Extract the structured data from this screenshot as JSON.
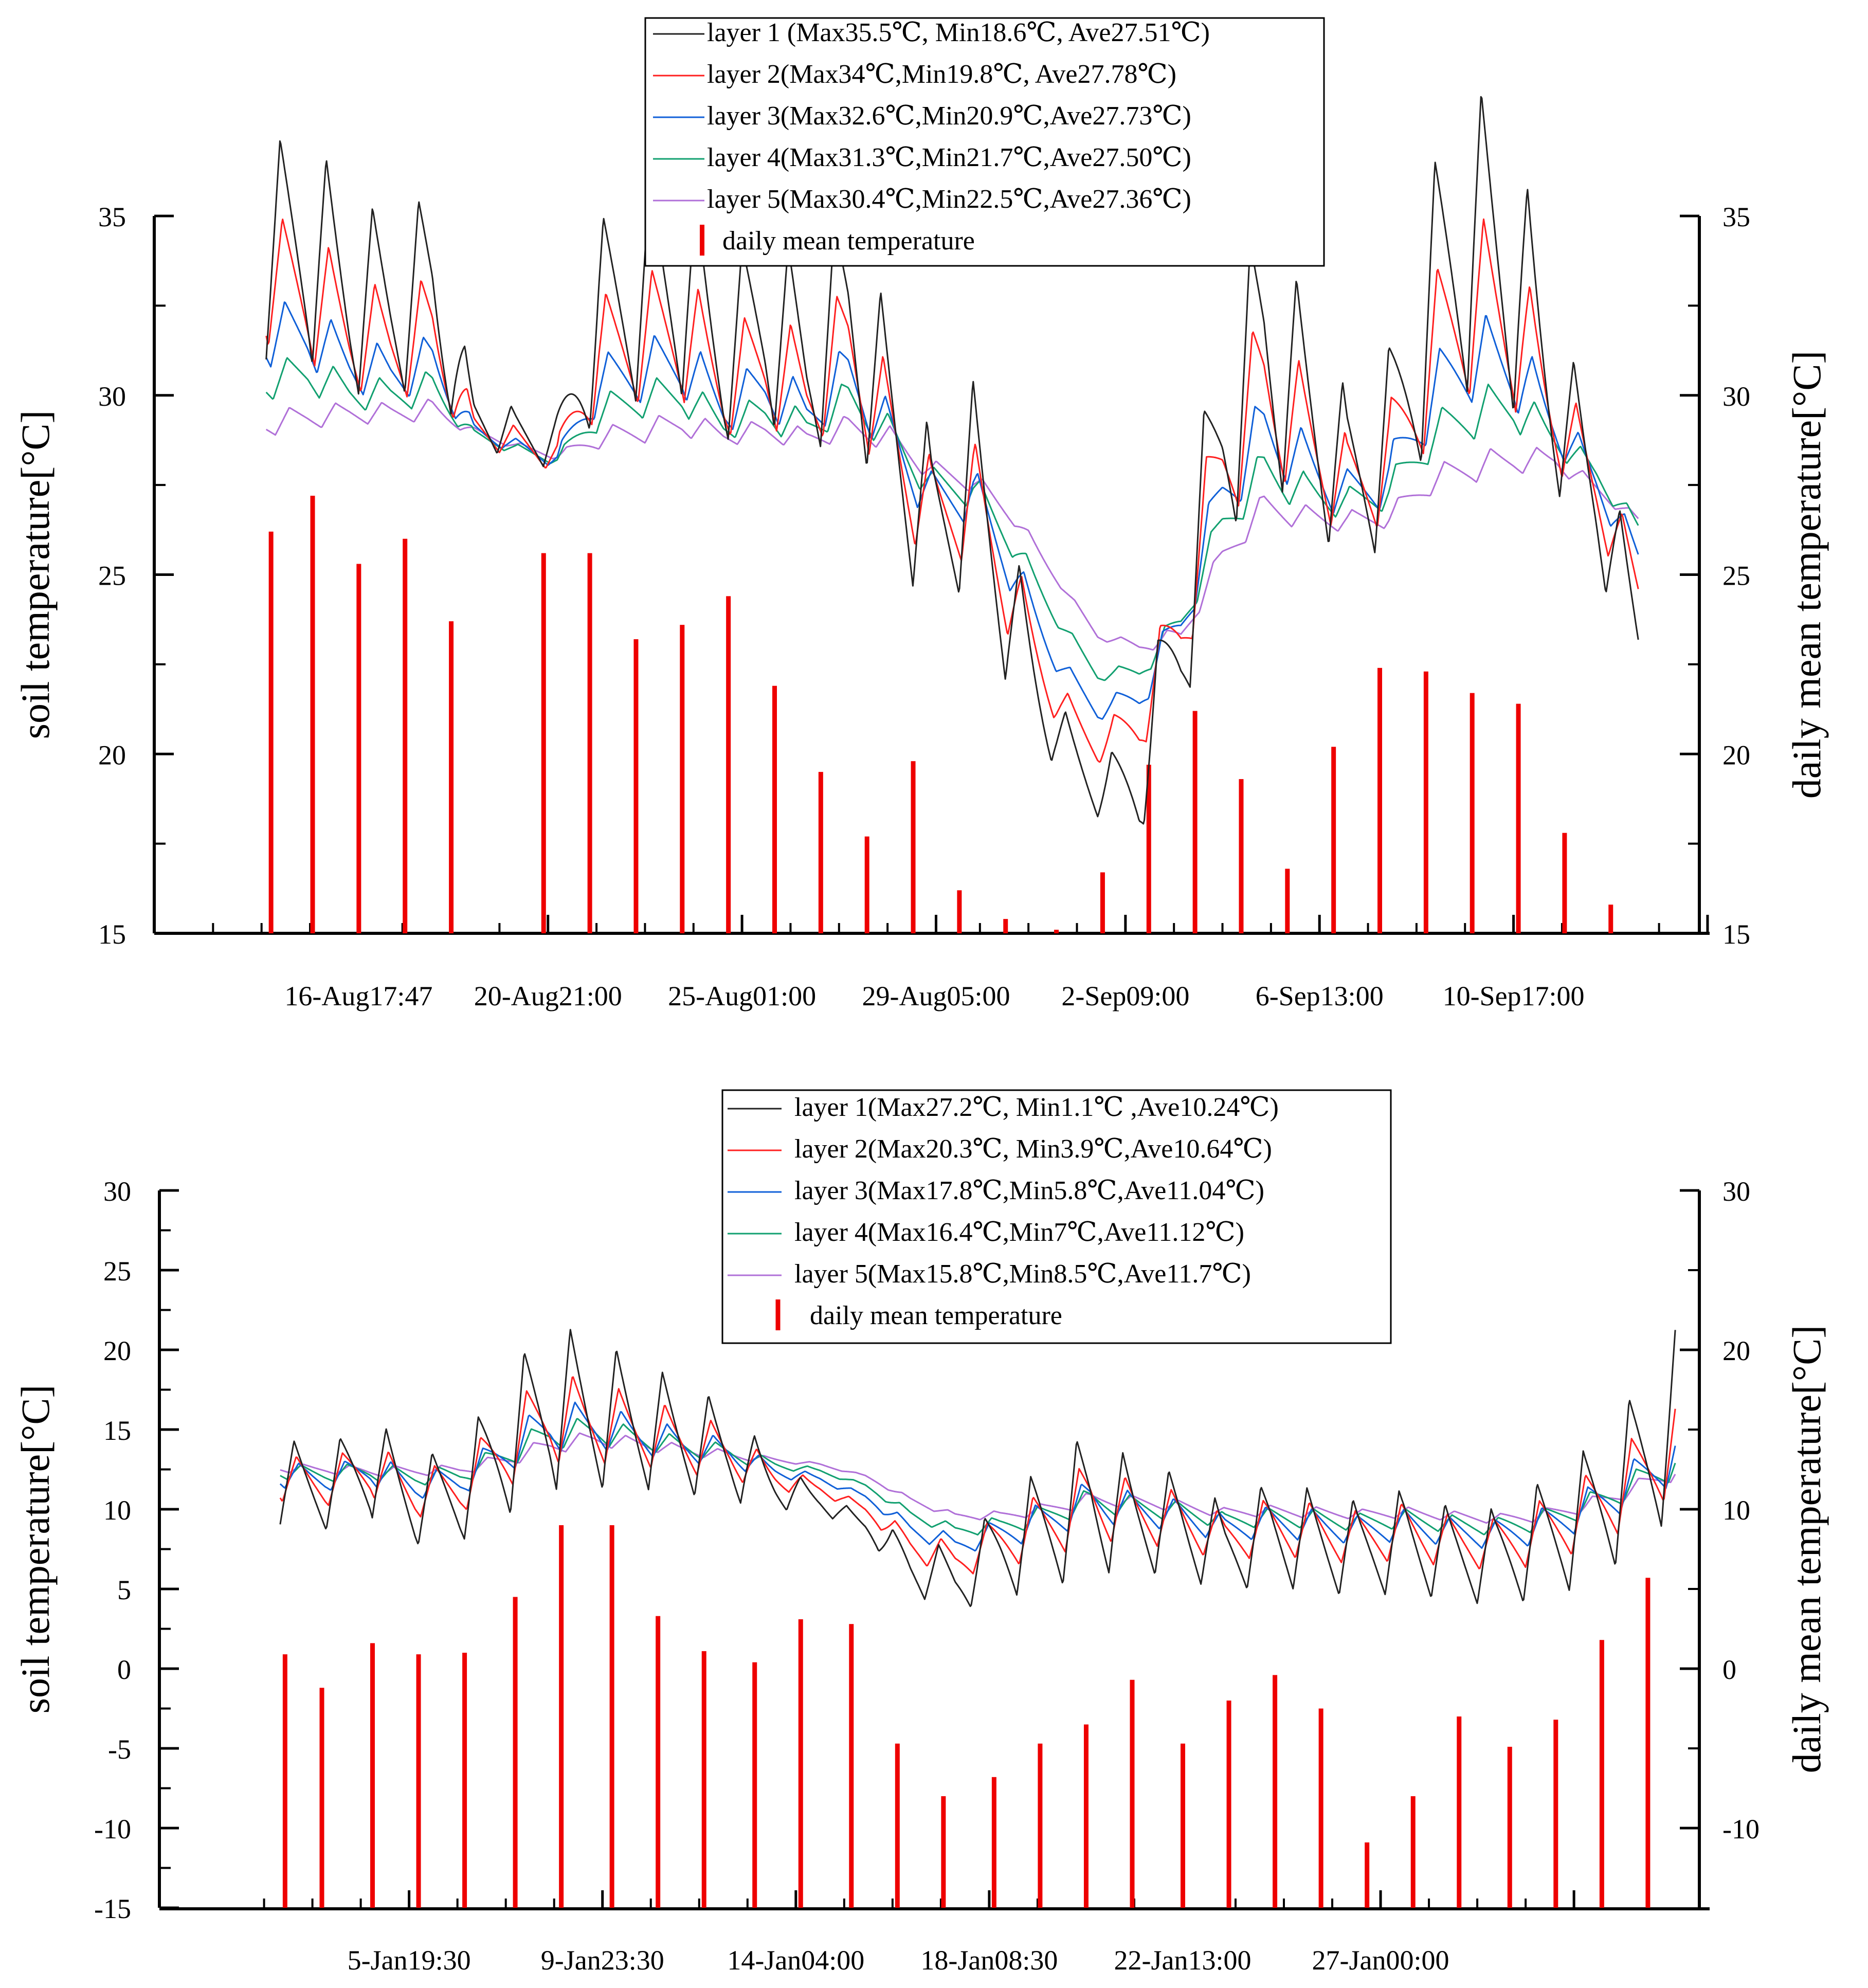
{
  "colors": {
    "layer1": "#222222",
    "layer2": "#ff2020",
    "layer3": "#1060d8",
    "layer4": "#12a070",
    "layer5": "#b070d8",
    "daily_bar": "#ee0000",
    "axis": "#000000"
  },
  "chart_data": [
    {
      "type": "line",
      "title": "",
      "ylabel": "soil temperature[°C]",
      "y2label": "daily mean temperature[°C]",
      "xlabel": "",
      "ylim": [
        15,
        35
      ],
      "y2lim": [
        15,
        35
      ],
      "yticks": [
        15,
        20,
        25,
        30,
        35
      ],
      "y2ticks": [
        15,
        20,
        25,
        30,
        35
      ],
      "xlim": [
        0,
        33
      ],
      "xtick_labels": [
        {
          "x": 4.2,
          "label": "16-Aug17:47"
        },
        {
          "x": 8.3,
          "label": "20-Aug21:00"
        },
        {
          "x": 12.5,
          "label": "25-Aug01:00"
        },
        {
          "x": 16.7,
          "label": "29-Aug05:00"
        },
        {
          "x": 20.8,
          "label": "2-Sep09:00"
        },
        {
          "x": 25.0,
          "label": "6-Sep13:00"
        },
        {
          "x": 29.2,
          "label": "10-Sep17:00"
        }
      ],
      "legend_position": "top-center",
      "legend": [
        "layer 1 (Max35.5℃, Min18.6℃, Ave27.51℃)",
        "layer 2(Max34℃,Min19.8℃, Ave27.78℃)",
        "layer 3(Max32.6℃,Min20.9℃,Ave27.73℃)",
        "layer 4(Max31.3℃,Min21.7℃,Ave27.50℃)",
        "layer 5(Max30.4℃,Min22.5℃,Ave27.36℃)",
        "daily  mean temperature"
      ],
      "series": [
        {
          "name": "layer 1",
          "x_start": 2.2,
          "x_end": 31.9,
          "base": [
            34.0,
            34.2,
            32.8,
            32.5,
            32.9,
            29.4,
            28.9,
            28.7,
            32.1,
            32.9,
            33.2,
            31.2,
            32.1,
            30.9,
            32.4,
            29.2,
            26.2,
            27.7,
            23.5,
            20.6,
            19.0,
            19.2,
            23.5,
            29.0,
            31.5,
            29.7,
            27.6,
            28.6,
            32.5,
            34.5,
            33.5,
            29.9,
            27.2,
            23.4
          ],
          "amplitude": [
            6.0,
            6.5,
            5.5,
            5.0,
            5.5,
            1.5,
            1.5,
            1.5,
            5.5,
            6.0,
            6.5,
            5.0,
            5.5,
            5.5,
            6.0,
            6.0,
            5.5,
            5.5,
            4.5,
            2.0,
            1.5,
            3.0,
            5.5,
            6.5,
            7.5,
            6.0,
            5.0,
            5.5,
            7.5,
            8.5,
            8.0,
            5.0,
            4.0,
            3.0
          ]
        },
        {
          "name": "layer 2",
          "x_start": 2.2,
          "x_end": 31.9,
          "base": [
            33.2,
            32.9,
            31.8,
            31.4,
            31.7,
            29.1,
            28.7,
            28.3,
            31.1,
            31.6,
            31.8,
            30.3,
            30.9,
            30.0,
            31.4,
            28.9,
            26.6,
            27.2,
            24.2,
            21.5,
            20.2,
            20.9,
            23.7,
            28.2,
            30.2,
            28.9,
            27.4,
            28.1,
            31.0,
            32.6,
            32.0,
            29.5,
            27.4,
            24.6
          ],
          "amplitude": [
            3.6,
            3.9,
            3.3,
            3.0,
            3.3,
            0.9,
            0.9,
            0.9,
            3.3,
            3.6,
            3.9,
            3.0,
            3.3,
            3.3,
            3.6,
            3.6,
            3.3,
            3.3,
            2.7,
            1.2,
            0.9,
            1.8,
            3.3,
            3.9,
            4.5,
            3.6,
            3.0,
            3.3,
            4.5,
            5.1,
            4.8,
            3.0,
            2.4,
            1.8
          ]
        },
        {
          "name": "layer 3",
          "x_start": 2.2,
          "x_end": 31.9,
          "base": [
            31.7,
            31.7,
            30.9,
            30.6,
            30.9,
            29.0,
            28.6,
            28.2,
            30.3,
            30.7,
            30.9,
            29.7,
            30.2,
            29.5,
            30.6,
            28.9,
            27.1,
            27.3,
            25.0,
            22.6,
            21.2,
            21.6,
            23.7,
            27.3,
            29.0,
            28.1,
            27.2,
            27.7,
            29.9,
            31.1,
            30.8,
            29.2,
            27.6,
            25.5
          ],
          "amplitude": [
            1.8,
            1.9,
            1.6,
            1.5,
            1.6,
            0.5,
            0.4,
            0.5,
            1.6,
            1.8,
            1.9,
            1.5,
            1.6,
            1.6,
            1.8,
            1.8,
            1.6,
            1.6,
            1.4,
            0.6,
            0.5,
            0.9,
            1.6,
            1.9,
            2.2,
            1.8,
            1.5,
            1.6,
            2.2,
            2.6,
            2.4,
            1.5,
            1.2,
            0.9
          ]
        },
        {
          "name": "layer 4",
          "x_start": 2.2,
          "x_end": 31.9,
          "base": [
            30.4,
            30.6,
            30.1,
            30.0,
            30.2,
            28.9,
            28.5,
            28.2,
            29.5,
            29.9,
            30.0,
            29.2,
            29.5,
            29.1,
            29.9,
            28.9,
            27.5,
            27.4,
            25.8,
            23.8,
            22.2,
            22.3,
            23.7,
            26.4,
            27.9,
            27.3,
            27.0,
            27.3,
            28.8,
            29.5,
            29.7,
            28.8,
            27.8,
            26.3
          ],
          "amplitude": [
            1.1,
            1.1,
            1.0,
            0.9,
            1.0,
            0.3,
            0.3,
            0.3,
            1.0,
            1.1,
            1.1,
            0.9,
            1.0,
            1.0,
            1.1,
            1.1,
            1.0,
            1.0,
            0.8,
            0.4,
            0.3,
            0.5,
            1.0,
            1.1,
            1.3,
            1.1,
            0.9,
            1.0,
            1.3,
            1.5,
            1.4,
            0.9,
            0.7,
            0.5
          ]
        },
        {
          "name": "layer 5",
          "x_start": 2.2,
          "x_end": 31.9,
          "base": [
            29.2,
            29.4,
            29.5,
            29.5,
            29.6,
            29.0,
            28.6,
            28.3,
            28.8,
            29.0,
            29.2,
            28.9,
            29.0,
            28.8,
            29.1,
            28.8,
            27.9,
            27.6,
            26.6,
            24.9,
            23.3,
            23.0,
            23.3,
            25.5,
            26.9,
            26.6,
            26.5,
            26.6,
            27.6,
            28.0,
            28.2,
            28.2,
            27.4,
            26.5
          ],
          "amplitude": [
            0.7,
            0.7,
            0.6,
            0.6,
            0.6,
            0.2,
            0.2,
            0.2,
            0.6,
            0.7,
            0.7,
            0.6,
            0.6,
            0.6,
            0.7,
            0.7,
            0.6,
            0.6,
            0.5,
            0.2,
            0.2,
            0.3,
            0.6,
            0.7,
            0.8,
            0.7,
            0.6,
            0.6,
            0.8,
            0.9,
            0.8,
            0.6,
            0.4,
            0.3
          ]
        }
      ],
      "daily_mean": {
        "x": [
          2.3,
          3.2,
          4.2,
          5.2,
          6.2,
          8.2,
          9.2,
          10.2,
          11.2,
          12.2,
          13.2,
          14.2,
          15.2,
          16.2,
          17.2,
          18.2,
          19.3,
          20.3,
          21.3,
          22.3,
          23.3,
          24.3,
          25.3,
          26.3,
          27.3,
          28.3,
          29.3,
          30.3,
          31.3
        ],
        "values": [
          26.2,
          27.2,
          25.3,
          26.0,
          23.7,
          25.6,
          25.6,
          23.2,
          23.6,
          24.4,
          21.9,
          19.5,
          17.7,
          19.8,
          16.2,
          15.4,
          15.1,
          16.7,
          19.7,
          21.2,
          19.3,
          16.8,
          20.2,
          22.4,
          22.3,
          21.7,
          21.4,
          17.8,
          15.8
        ]
      }
    },
    {
      "type": "line",
      "title": "",
      "ylabel": "soil temperature[°C]",
      "y2label": "daily mean temperature[°C]",
      "xlabel": "",
      "ylim": [
        -15,
        30
      ],
      "y2lim": [
        -15,
        30
      ],
      "yticks": [
        -15,
        -10,
        -5,
        0,
        5,
        10,
        15,
        20,
        25,
        30
      ],
      "y2ticks": [
        -10,
        0,
        10,
        20,
        30
      ],
      "xlim": [
        0,
        33
      ],
      "xtick_labels": [
        {
          "x": 5.2,
          "label": "5-Jan19:30"
        },
        {
          "x": 9.4,
          "label": "9-Jan23:30"
        },
        {
          "x": 13.6,
          "label": "14-Jan04:00"
        },
        {
          "x": 17.8,
          "label": "18-Jan08:30"
        },
        {
          "x": 22.0,
          "label": "22-Jan13:00"
        },
        {
          "x": 26.3,
          "label": "27-Jan00:00"
        }
      ],
      "legend_position": "top-center",
      "legend": [
        "layer 1(Max27.2℃, Min1.1℃ ,Ave10.24℃)",
        "layer 2(Max20.3℃, Min3.9℃,Ave10.64℃)",
        "layer 3(Max17.8℃,Min5.8℃,Ave11.04℃)",
        "layer 4(Max16.4℃,Min7℃,Ave11.12℃)",
        "layer 5(Max15.8℃,Min8.5℃,Ave11.7℃)",
        "daily mean temperature"
      ],
      "series": [
        {
          "name": "layer 1",
          "x_start": 2.4,
          "x_end": 32.7,
          "base": [
            11.8,
            11.2,
            12.8,
            10.5,
            11.0,
            14.0,
            16.5,
            16.0,
            15.3,
            14.4,
            13.5,
            11.5,
            10.5,
            9.0,
            6.5,
            5.5,
            7.5,
            8.8,
            10.5,
            9.5,
            9.0,
            7.5,
            8.5,
            8.0,
            7.5,
            8.0,
            7.2,
            7.0,
            8.0,
            9.5,
            12.0,
            15.5
          ],
          "amplitude": [
            5.5,
            5.0,
            6.5,
            5.5,
            6.0,
            9.0,
            10.5,
            9.5,
            8.0,
            7.0,
            6.0,
            3.0,
            1.5,
            1.0,
            3.5,
            4.0,
            6.0,
            8.0,
            9.0,
            7.0,
            6.5,
            5.5,
            6.5,
            6.5,
            6.0,
            6.5,
            6.0,
            6.0,
            7.5,
            8.5,
            10.0,
            11.5
          ]
        },
        {
          "name": "layer 2",
          "x_start": 2.4,
          "x_end": 32.7,
          "base": [
            12.0,
            11.6,
            12.6,
            11.0,
            11.4,
            13.8,
            15.8,
            15.5,
            14.9,
            14.2,
            13.5,
            12.0,
            11.3,
            10.0,
            7.8,
            6.8,
            8.0,
            9.0,
            10.5,
            9.8,
            9.3,
            8.2,
            8.9,
            8.6,
            8.2,
            8.6,
            8.0,
            7.8,
            8.5,
            9.8,
            11.6,
            14.2
          ],
          "amplitude": [
            3.0,
            2.8,
            3.6,
            3.0,
            3.3,
            5.0,
            5.8,
            5.2,
            4.4,
            3.9,
            3.3,
            1.7,
            0.8,
            0.6,
            1.9,
            2.2,
            3.3,
            4.4,
            5.0,
            3.9,
            3.6,
            3.0,
            3.6,
            3.6,
            3.3,
            3.6,
            3.3,
            3.3,
            4.1,
            4.7,
            5.5,
            6.3
          ]
        },
        {
          "name": "layer 3",
          "x_start": 2.4,
          "x_end": 32.7,
          "base": [
            12.2,
            11.9,
            12.5,
            11.5,
            11.8,
            13.6,
            15.2,
            15.2,
            14.6,
            14.0,
            13.5,
            12.4,
            11.9,
            10.8,
            8.8,
            7.8,
            8.5,
            9.3,
            10.5,
            10.0,
            9.6,
            8.8,
            9.2,
            9.0,
            8.7,
            9.0,
            8.6,
            8.4,
            8.9,
            10.0,
            11.5,
            13.4
          ],
          "amplitude": [
            1.7,
            1.5,
            2.0,
            1.7,
            1.8,
            2.7,
            3.2,
            2.9,
            2.4,
            2.1,
            1.8,
            0.9,
            0.5,
            0.3,
            1.1,
            1.2,
            1.8,
            2.4,
            2.7,
            2.1,
            2.0,
            1.7,
            2.0,
            2.0,
            1.8,
            2.0,
            1.8,
            1.8,
            2.3,
            2.6,
            3.0,
            3.5
          ]
        },
        {
          "name": "layer 4",
          "x_start": 2.4,
          "x_end": 32.7,
          "base": [
            12.4,
            12.2,
            12.4,
            12.0,
            12.2,
            13.4,
            14.7,
            14.9,
            14.4,
            13.9,
            13.5,
            12.8,
            12.4,
            11.5,
            9.7,
            8.7,
            9.0,
            9.6,
            10.5,
            10.2,
            9.9,
            9.3,
            9.5,
            9.4,
            9.2,
            9.4,
            9.1,
            8.9,
            9.3,
            10.2,
            11.4,
            12.9
          ],
          "amplitude": [
            1.0,
            0.9,
            1.2,
            1.0,
            1.1,
            1.6,
            1.9,
            1.7,
            1.4,
            1.3,
            1.1,
            0.6,
            0.3,
            0.2,
            0.7,
            0.7,
            1.1,
            1.4,
            1.6,
            1.3,
            1.2,
            1.0,
            1.2,
            1.2,
            1.1,
            1.2,
            1.1,
            1.1,
            1.4,
            1.5,
            1.8,
            2.1
          ]
        },
        {
          "name": "layer 5",
          "x_start": 2.4,
          "x_end": 32.7,
          "base": [
            12.6,
            12.5,
            12.4,
            12.4,
            12.5,
            13.1,
            14.0,
            14.4,
            14.1,
            13.7,
            13.4,
            13.1,
            12.8,
            12.1,
            10.6,
            9.6,
            9.6,
            10.0,
            10.6,
            10.5,
            10.2,
            9.8,
            9.9,
            9.8,
            9.7,
            9.8,
            9.6,
            9.4,
            9.6,
            10.2,
            11.2,
            12.4
          ],
          "amplitude": [
            0.6,
            0.5,
            0.7,
            0.6,
            0.6,
            0.9,
            1.1,
            1.0,
            0.8,
            0.7,
            0.6,
            0.3,
            0.2,
            0.1,
            0.4,
            0.4,
            0.6,
            0.8,
            0.9,
            0.7,
            0.7,
            0.6,
            0.7,
            0.7,
            0.6,
            0.7,
            0.6,
            0.6,
            0.8,
            0.9,
            1.0,
            1.2
          ]
        }
      ],
      "daily_mean": {
        "x": [
          2.5,
          3.3,
          4.4,
          5.4,
          6.4,
          7.5,
          8.5,
          9.6,
          10.6,
          11.6,
          12.7,
          13.7,
          14.8,
          15.8,
          16.8,
          17.9,
          18.9,
          19.9,
          20.9,
          22.0,
          23.0,
          24.0,
          25.0,
          26.0,
          27.0,
          28.0,
          29.1,
          30.1,
          31.1,
          32.1
        ],
        "values": [
          0.9,
          -1.2,
          1.6,
          0.9,
          1.0,
          4.5,
          9.0,
          9.0,
          3.3,
          1.1,
          0.4,
          3.1,
          2.8,
          -4.7,
          -8.0,
          -6.8,
          -4.7,
          -3.5,
          -0.7,
          -4.7,
          -2.0,
          -0.4,
          -2.5,
          -10.9,
          -8.0,
          -3.0,
          -4.9,
          -3.2,
          1.8,
          5.7
        ]
      }
    }
  ]
}
